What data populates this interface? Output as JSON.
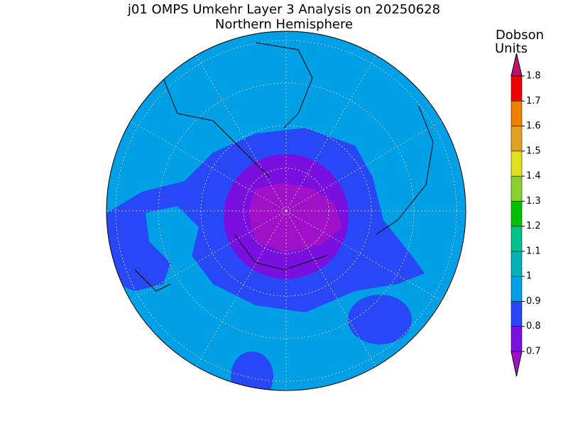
{
  "title": "j01 OMPS Umkehr Layer 3 Analysis on 20250628",
  "subtitle": "Northern Hemisphere",
  "colorbar": {
    "label_lines": [
      "Dobson",
      "Units"
    ],
    "ticks": [
      0.7,
      0.8,
      0.9,
      1,
      1.1,
      1.2,
      1.3,
      1.4,
      1.5,
      1.6,
      1.7,
      1.8
    ],
    "colors": [
      "#a010c8",
      "#7a10e0",
      "#2848f8",
      "#00a0e6",
      "#00b0b8",
      "#00c08a",
      "#00c000",
      "#88d030",
      "#e0e020",
      "#e0a020",
      "#f08000",
      "#f00000",
      "#c01070"
    ]
  }
}
